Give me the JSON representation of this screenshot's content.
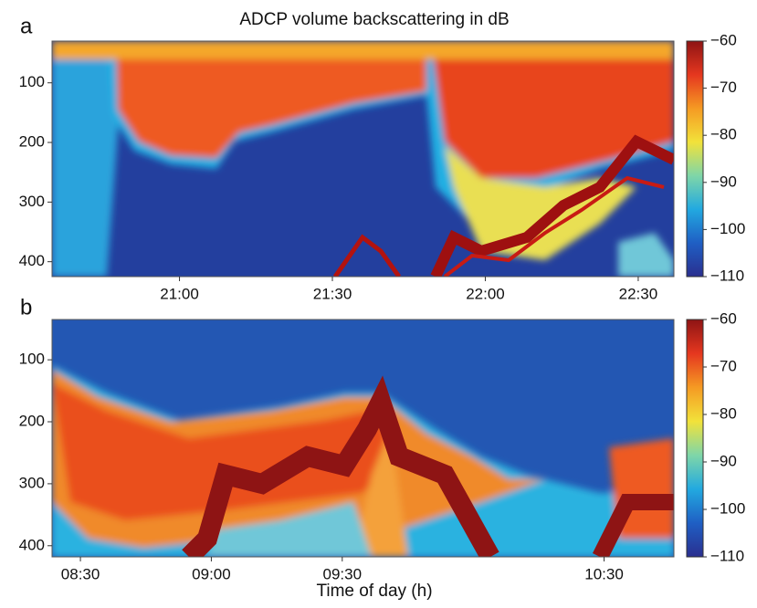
{
  "chart_data": [
    {
      "type": "heatmap",
      "panel_label": "a",
      "title": "ADCP volume backscattering in dB",
      "ylim": [
        30,
        425
      ],
      "yticks": [
        100,
        200,
        300,
        400
      ],
      "xlim": [
        1235,
        1357
      ],
      "xticks": [
        {
          "value": 1260,
          "label": "21:00"
        },
        {
          "value": 1290,
          "label": "21:30"
        },
        {
          "value": 1320,
          "label": "22:00"
        },
        {
          "value": 1350,
          "label": "22:30"
        }
      ],
      "colorbar": {
        "lim": [
          -110,
          -60
        ],
        "ticks": [
          {
            "value": -60,
            "label": "−60"
          },
          {
            "value": -70,
            "label": "−70"
          },
          {
            "value": -80,
            "label": "−80"
          },
          {
            "value": -90,
            "label": "−90"
          },
          {
            "value": -100,
            "label": "−100"
          },
          {
            "value": -110,
            "label": "−110"
          }
        ],
        "colors": [
          "#2a2f8f",
          "#1f5fc4",
          "#22a9e0",
          "#7fd6a8",
          "#f2e23a",
          "#f59a23",
          "#e5371f",
          "#8e1414"
        ]
      }
    },
    {
      "type": "heatmap",
      "panel_label": "b",
      "xlabel": "Time of day (h)",
      "ylim": [
        35,
        418
      ],
      "yticks": [
        100,
        200,
        300,
        400
      ],
      "xlim": [
        503.5,
        646
      ],
      "xticks": [
        {
          "value": 510,
          "label": "08:30"
        },
        {
          "value": 540,
          "label": "09:00"
        },
        {
          "value": 570,
          "label": "09:30"
        },
        {
          "value": 630,
          "label": "10:30"
        }
      ],
      "colorbar": {
        "lim": [
          -110,
          -60
        ],
        "ticks": [
          {
            "value": -60,
            "label": "−60"
          },
          {
            "value": -70,
            "label": "−70"
          },
          {
            "value": -80,
            "label": "−80"
          },
          {
            "value": -90,
            "label": "−90"
          },
          {
            "value": -100,
            "label": "−100"
          },
          {
            "value": -110,
            "label": "−110"
          }
        ],
        "colors": [
          "#2a2f8f",
          "#1f5fc4",
          "#22a9e0",
          "#7fd6a8",
          "#f2e23a",
          "#f59a23",
          "#e5371f",
          "#8e1414"
        ]
      }
    }
  ]
}
